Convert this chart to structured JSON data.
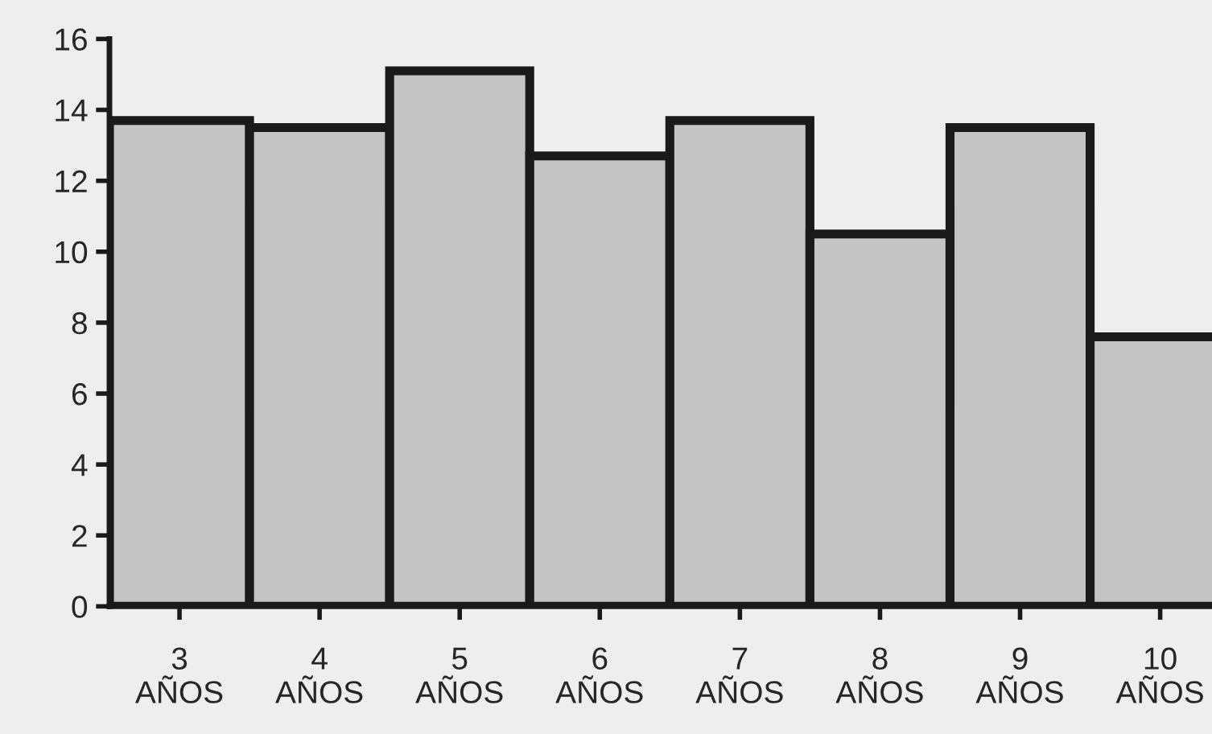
{
  "chart_data": {
    "type": "bar",
    "categories": [
      "3\nAÑOS",
      "4\nAÑOS",
      "5\nAÑOS",
      "6\nAÑOS",
      "7\nAÑOS",
      "8\nAÑOS",
      "9\nAÑOS",
      "10\nAÑOS"
    ],
    "values": [
      13.7,
      13.5,
      15.1,
      12.7,
      13.7,
      10.5,
      13.5,
      7.6
    ],
    "color": "#c4c4c4",
    "ylim": [
      0,
      16
    ],
    "yticks": [
      0,
      2,
      4,
      6,
      8,
      10,
      12,
      14,
      16
    ],
    "grid": false
  }
}
